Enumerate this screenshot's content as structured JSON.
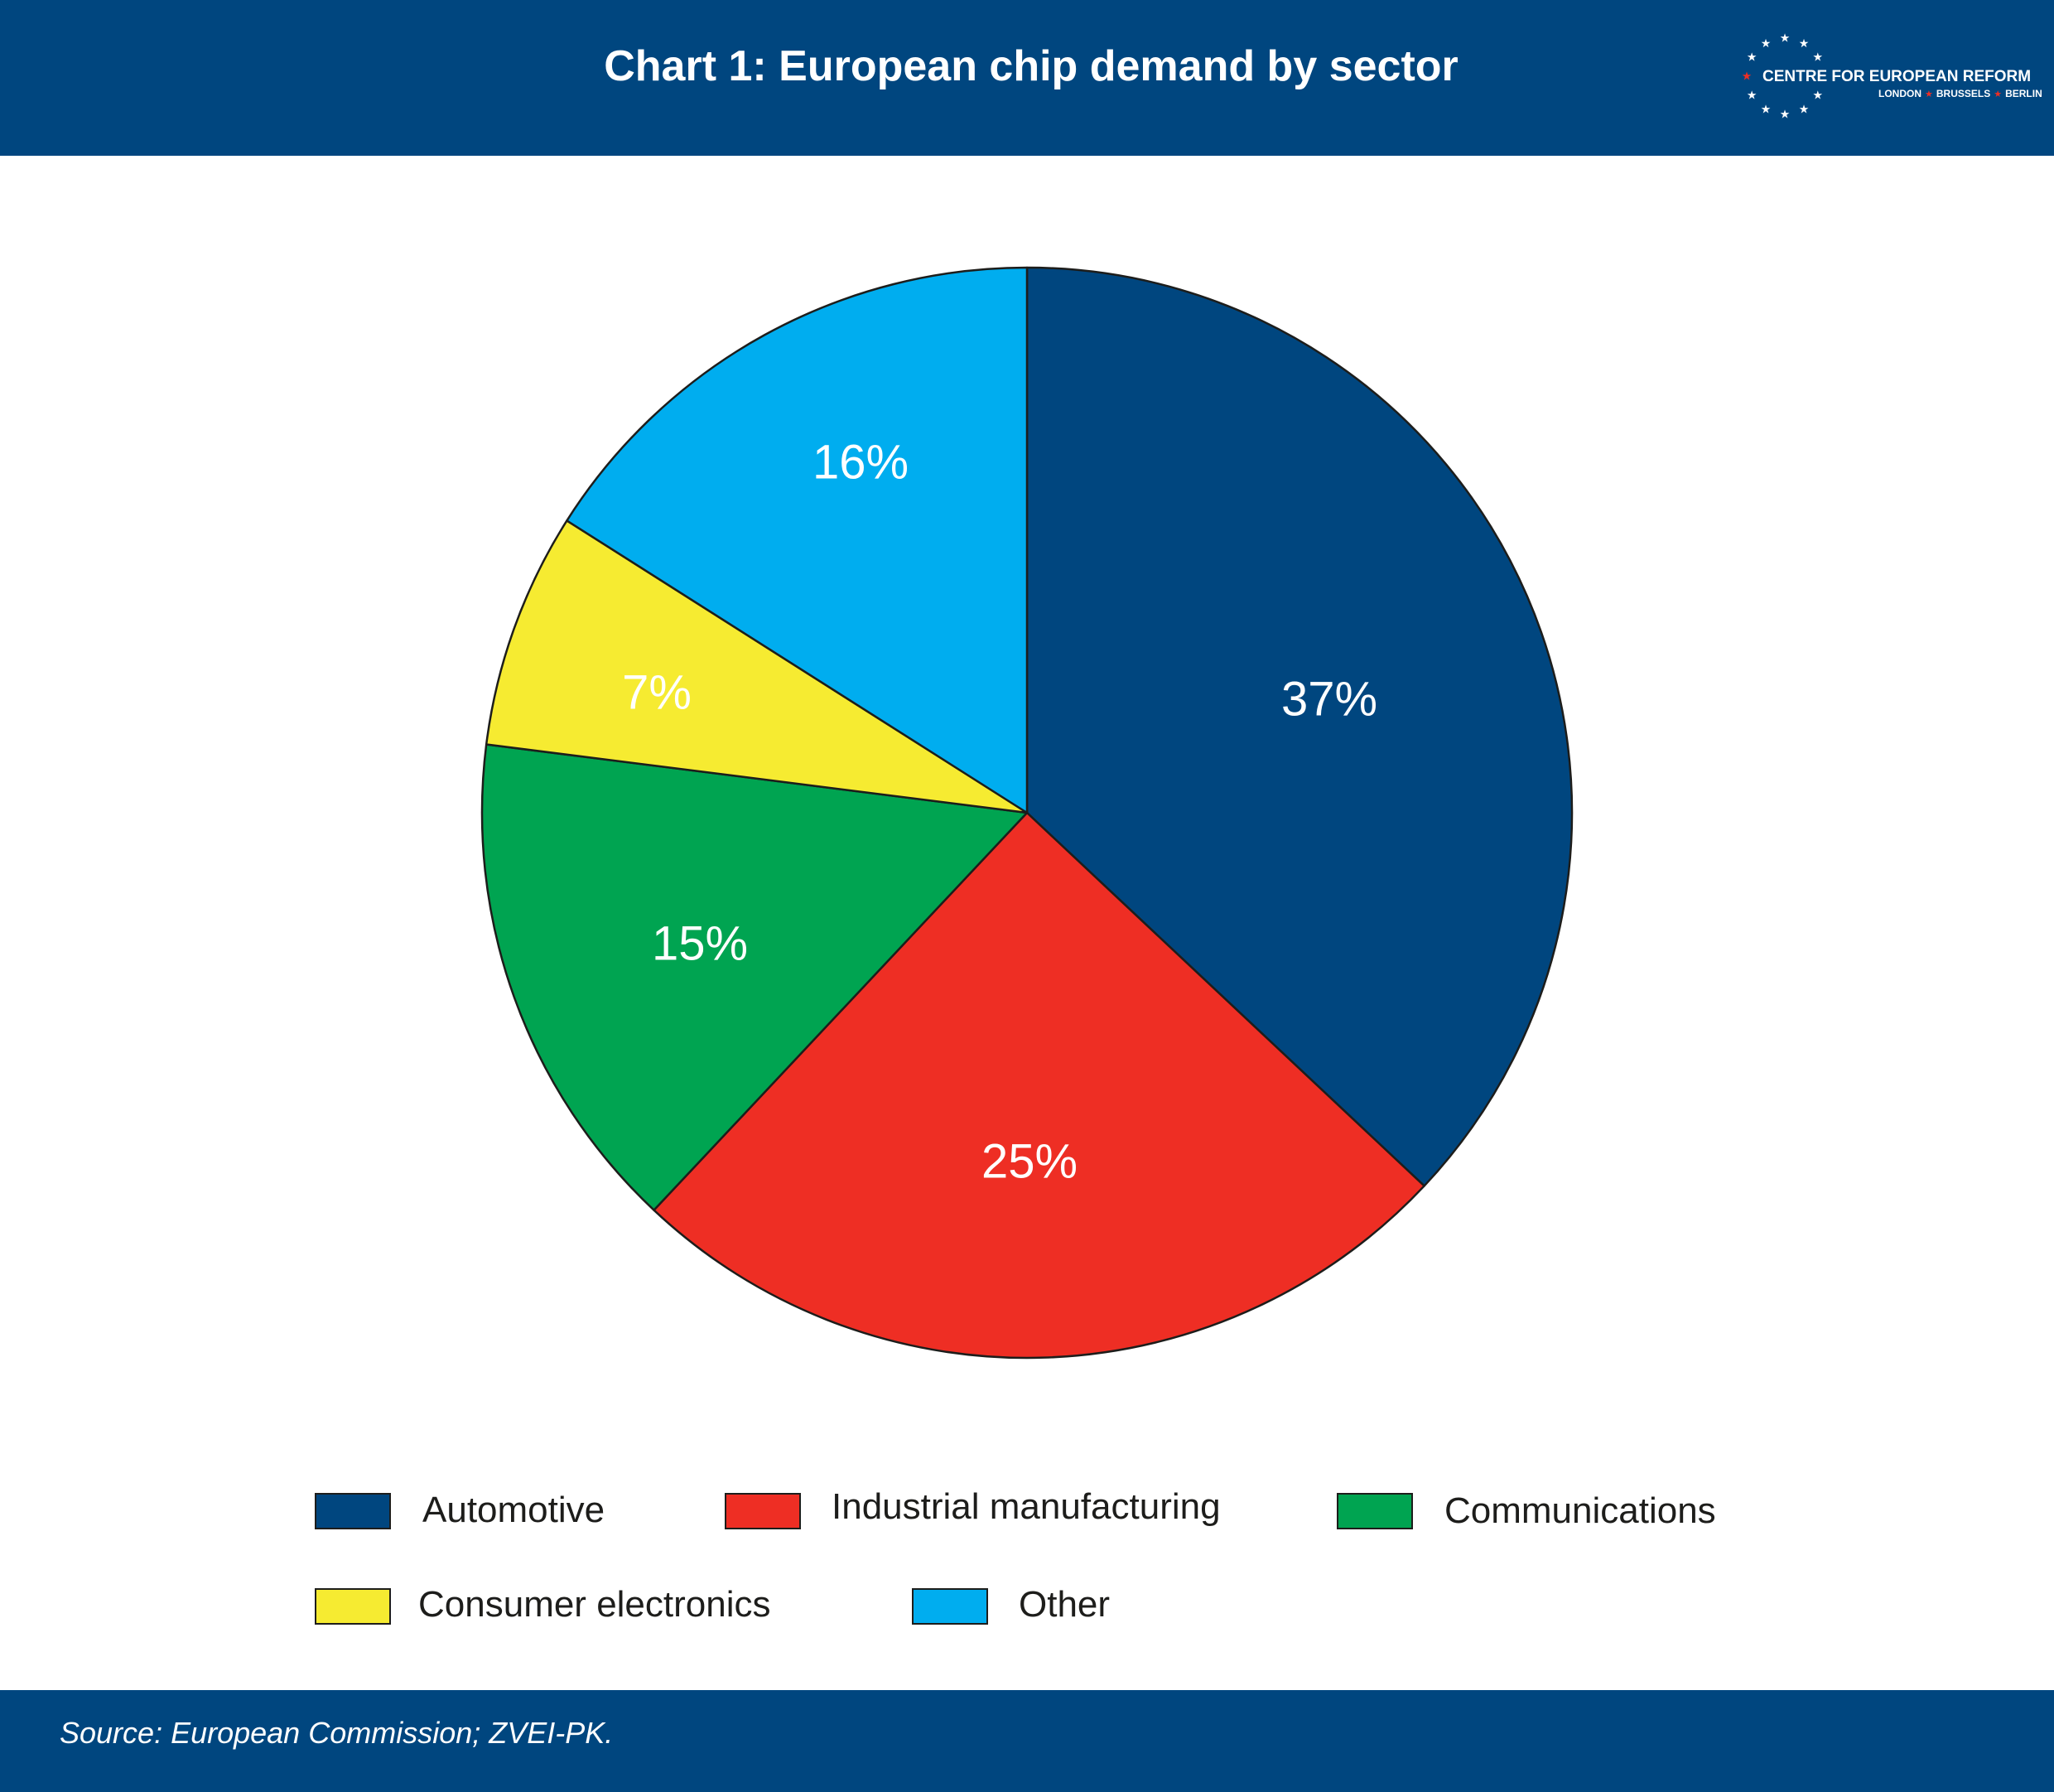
{
  "header": {
    "title": "Chart 1: European chip demand by sector",
    "brand_name": "CENTRE FOR EUROPEAN REFORM",
    "brand_cities": [
      "LONDON",
      "BRUSSELS",
      "BERLIN"
    ],
    "brand_star_color": "#ee2e24"
  },
  "colors": {
    "banner": "#00467f",
    "outline": "#1d1d1b"
  },
  "chart_data": {
    "type": "pie",
    "slices": [
      {
        "name": "Automotive",
        "value": 37,
        "label": "37%",
        "color": "#00467f"
      },
      {
        "name": "Industrial manufacturing",
        "value": 25,
        "label": "25%",
        "color": "#ee2e24"
      },
      {
        "name": "Communications",
        "value": 15,
        "label": "15%",
        "color": "#00a451"
      },
      {
        "name": "Consumer electronics",
        "value": 7,
        "label": "7%",
        "color": "#f6eb31"
      },
      {
        "name": "Other",
        "value": 16,
        "label": "16%",
        "color": "#00adef"
      }
    ],
    "start_angle": "12 o'clock",
    "direction": "clockwise",
    "legend_position": "bottom"
  },
  "footer": {
    "source": "Source: European Commission; ZVEI-PK."
  }
}
